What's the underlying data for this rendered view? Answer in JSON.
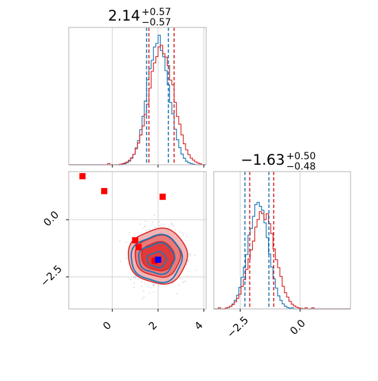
{
  "chart_data": {
    "type": "corner",
    "colors": {
      "blue": "#1f77b4",
      "red": "#d62728",
      "frame": "#b0b0b0",
      "grid": "#d0d0d0"
    },
    "panels": [
      {
        "id": "hist_param1",
        "type": "histogram",
        "title": {
          "value": "2.14",
          "upper": "+0.57",
          "lower": "−0.57"
        },
        "xlim": [
          -1.9,
          4.1
        ],
        "x_ticks": [],
        "quantiles": {
          "blue": [
            1.5,
            2.45
          ],
          "red": [
            1.6,
            2.7
          ]
        },
        "series": [
          {
            "name": "",
            "color": "#1f77b4",
            "mu": 2.0,
            "sigma": 0.47,
            "peak": 0.93
          },
          {
            "name": "",
            "color": "#d62728",
            "mu": 2.15,
            "sigma": 0.55,
            "peak": 0.84
          }
        ]
      },
      {
        "id": "hist_param2",
        "type": "histogram",
        "title": {
          "value": "−1.63",
          "upper": "+0.50",
          "lower": "−0.48"
        },
        "xlim": [
          -3.6,
          2.1
        ],
        "x_ticks": [
          "−2.5",
          "0.0"
        ],
        "x_tick_values": [
          -2.5,
          0.0
        ],
        "quantiles": {
          "blue": [
            -2.3,
            -1.3
          ],
          "red": [
            -2.1,
            -1.1
          ]
        },
        "series": [
          {
            "name": "",
            "color": "#1f77b4",
            "mu": -1.75,
            "sigma": 0.42,
            "peak": 0.78
          },
          {
            "name": "",
            "color": "#d62728",
            "mu": -1.55,
            "sigma": 0.5,
            "peak": 0.7
          }
        ]
      },
      {
        "id": "joint",
        "type": "contour_scatter",
        "xlim": [
          -1.9,
          4.1
        ],
        "ylim": [
          -3.9,
          2.1
        ],
        "x_ticks": [
          "0",
          "2",
          "4"
        ],
        "x_tick_values": [
          0,
          2,
          4
        ],
        "y_ticks": [
          "0.0",
          "−2.5"
        ],
        "y_tick_values": [
          0.0,
          -2.5
        ],
        "red_contour_center": [
          2.0,
          -1.6
        ],
        "blue_contour_center": [
          1.95,
          -1.7
        ],
        "markers": {
          "red": [
            [
              -1.3,
              1.9
            ],
            [
              -0.35,
              1.25
            ],
            [
              2.2,
              1.0
            ],
            [
              1.0,
              -0.9
            ],
            [
              1.15,
              -1.2
            ],
            [
              1.85,
              -1.8
            ]
          ],
          "blue": [
            [
              2.0,
              -1.75
            ]
          ]
        }
      }
    ],
    "x_axis_labels": {
      "joint": [
        "0",
        "2",
        "4"
      ],
      "hist_param2": [
        "−2.5",
        "0.0"
      ]
    }
  }
}
